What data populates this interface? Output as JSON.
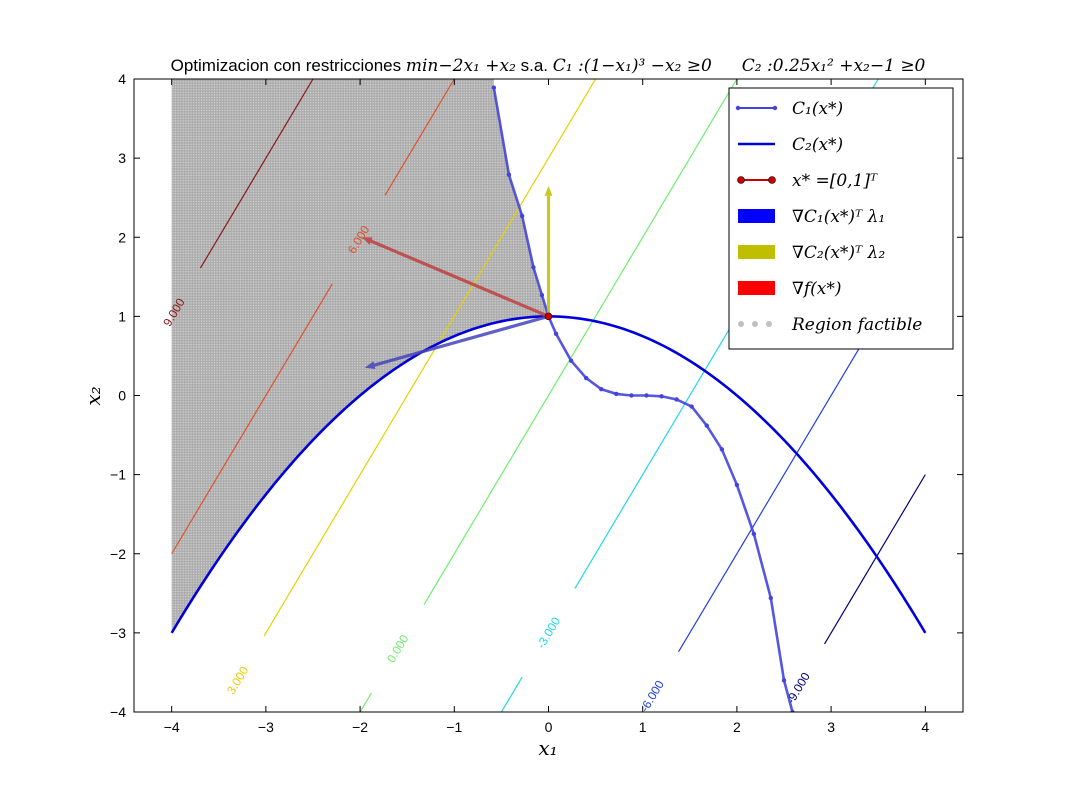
{
  "chart_data": {
    "type": "line",
    "title": {
      "prefix": "Optimizacion con restricciones ",
      "objective": "min−2x₁ +x₂",
      "sa": " s.a. ",
      "c1": "C₁ :(1−x₁)³ −x₂ ≥0",
      "c2": "C₂ :0.25x₁² +x₂−1 ≥0"
    },
    "xlabel": "x₁",
    "ylabel": "x₂",
    "xlim": [
      -4.4,
      4.4
    ],
    "ylim": [
      -4,
      4
    ],
    "xticks": [
      -4,
      -3,
      -2,
      -1,
      0,
      1,
      2,
      3,
      4
    ],
    "yticks": [
      -4,
      -3,
      -2,
      -1,
      0,
      1,
      2,
      3,
      4
    ],
    "tick_labels_x": [
      "−4",
      "−3",
      "−2",
      "−1",
      "0",
      "1",
      "2",
      "3",
      "4"
    ],
    "tick_labels_y": [
      "−4",
      "−3",
      "−2",
      "−1",
      "0",
      "1",
      "2",
      "3",
      "4"
    ],
    "grid": false,
    "legend": {
      "position": "top-right",
      "entries": [
        {
          "label": "C₁(x*)",
          "color": "#4444dd",
          "kind": "line-dots"
        },
        {
          "label": "C₂(x*)",
          "color": "#0000dd",
          "kind": "line"
        },
        {
          "label": "x* =[0,1]ᵀ",
          "color": "#cc0000",
          "kind": "line-circles"
        },
        {
          "label": "∇C₁(x*)ᵀ λ₁",
          "color": "#0000ff",
          "kind": "patch"
        },
        {
          "label": "∇C₂(x*)ᵀ λ₂",
          "color": "#bfbf00",
          "kind": "patch"
        },
        {
          "label": "∇f(x*)",
          "color": "#ff0000",
          "kind": "patch"
        },
        {
          "label": "Region      factible",
          "color": "#c0c0c0",
          "kind": "dots"
        }
      ]
    },
    "curve_c1": {
      "name": "C₁(x*)",
      "x": [
        -0.58,
        -0.42,
        -0.28,
        -0.16,
        -0.07,
        0.0,
        0.08,
        0.24,
        0.4,
        0.56,
        0.72,
        0.88,
        1.04,
        1.2,
        1.36,
        1.52,
        1.68,
        1.84,
        2.0,
        2.18,
        2.36,
        2.5,
        2.59
      ],
      "y": [
        3.89,
        2.79,
        2.27,
        1.62,
        1.27,
        1.0,
        0.78,
        0.44,
        0.22,
        0.08,
        0.02,
        0.0,
        0.0,
        -0.01,
        -0.05,
        -0.14,
        -0.38,
        -0.68,
        -1.13,
        -1.75,
        -2.56,
        -3.6,
        -4.0
      ],
      "color": "#4444dd"
    },
    "curve_c2": {
      "name": "C₂(x*)",
      "function": "1 - 0.25*x^2",
      "x_range": [
        -4,
        4
      ],
      "color": "#0000dd"
    },
    "point": {
      "name": "x* =[0,1]ᵀ",
      "x": 0,
      "y": 1,
      "color": "#cc0000"
    },
    "arrows": [
      {
        "name": "∇C₁(x*)ᵀ λ₁",
        "from": [
          0,
          1
        ],
        "to": [
          -1.95,
          0.35
        ],
        "color": "#4444bb"
      },
      {
        "name": "∇C₂(x*)ᵀ λ₂",
        "from": [
          0,
          1
        ],
        "to": [
          0,
          2.65
        ],
        "color": "#bfbf00"
      },
      {
        "name": "∇f(x*)",
        "from": [
          0,
          1
        ],
        "to": [
          -1.98,
          2.0
        ],
        "color": "#c04040"
      }
    ],
    "feasible_region": {
      "name": "Region factible",
      "x_min": -4,
      "color": "#b0b0b0"
    },
    "contours": [
      {
        "level": 9,
        "label": "9.000",
        "color": "#8b1a1a",
        "label_x": -4.0,
        "label_y": 1.05
      },
      {
        "level": 6,
        "label": "6.000",
        "color": "#e05030",
        "label_x": -1.97,
        "label_y": 1.97
      },
      {
        "level": 3,
        "label": "3.000",
        "color": "#e8d000",
        "label_x": -3.3,
        "label_y": -3.6
      },
      {
        "level": 0,
        "label": "0.000",
        "color": "#70ee70",
        "label_x": -1.6,
        "label_y": -3.2
      },
      {
        "level": -3,
        "label": "-3.000",
        "color": "#20d8e8",
        "label_x": 0.0,
        "label_y": -3.0
      },
      {
        "level": -6,
        "label": "-6.000",
        "color": "#2040e0",
        "label_x": 1.1,
        "label_y": -3.8
      },
      {
        "level": -9,
        "label": "-9.000",
        "color": "#000080",
        "label_x": 2.65,
        "label_y": -3.7
      }
    ]
  }
}
